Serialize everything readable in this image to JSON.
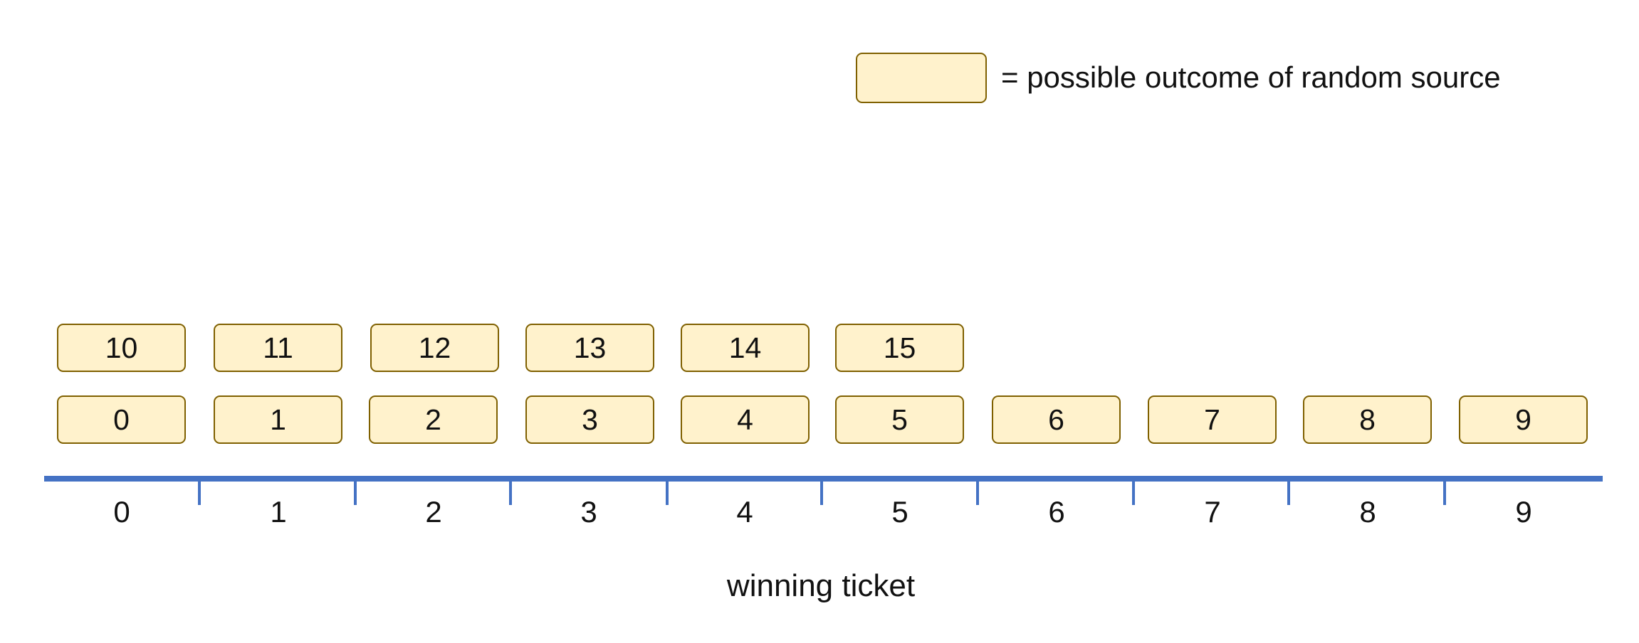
{
  "legend": {
    "text": "= possible outcome of random source"
  },
  "outcomes": {
    "row_top": [
      "10",
      "11",
      "12",
      "13",
      "14",
      "15"
    ],
    "row_bottom": [
      "0",
      "1",
      "2",
      "3",
      "4",
      "5",
      "6",
      "7",
      "8",
      "9"
    ]
  },
  "axis": {
    "tick_labels": [
      "0",
      "1",
      "2",
      "3",
      "4",
      "5",
      "6",
      "7",
      "8",
      "9"
    ],
    "title": "winning ticket"
  },
  "colors": {
    "box_fill": "#fff2cc",
    "box_border": "#7f6000",
    "axis": "#4472c4"
  }
}
